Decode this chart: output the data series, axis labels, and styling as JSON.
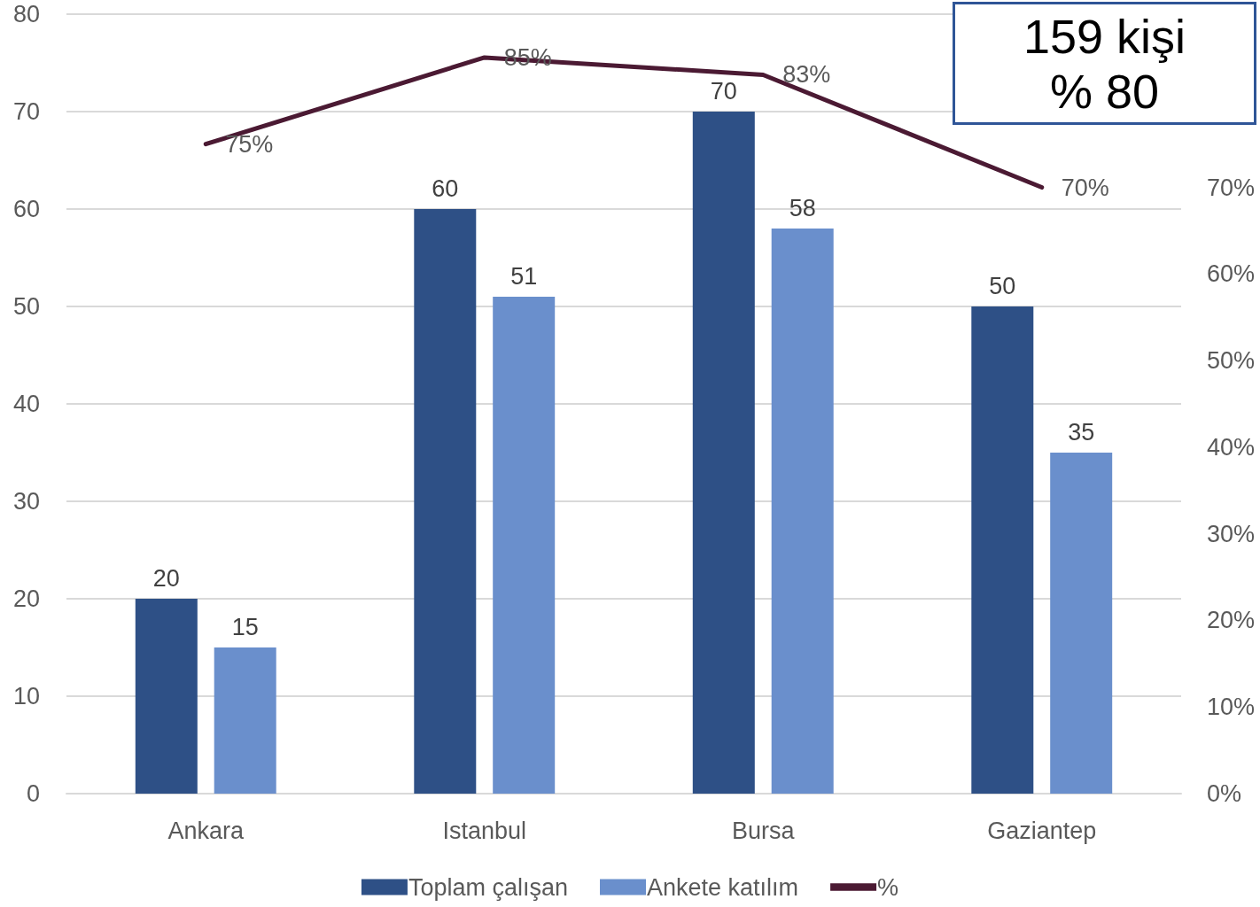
{
  "chart_data": {
    "type": "bar",
    "categories": [
      "Ankara",
      "Istanbul",
      "Bursa",
      "Gaziantep"
    ],
    "series": [
      {
        "name": "Toplam çalışan",
        "color": "#2e5086",
        "values": [
          20,
          60,
          70,
          50
        ],
        "value_labels": [
          "20",
          "60",
          "70",
          "50"
        ]
      },
      {
        "name": "Ankete katılım",
        "color": "#6a8fcc",
        "values": [
          15,
          51,
          58,
          35
        ],
        "value_labels": [
          "15",
          "51",
          "58",
          "35"
        ]
      },
      {
        "name": "%",
        "type": "line",
        "axis": "y2",
        "color": "#4b1a33",
        "values": [
          75,
          85,
          83,
          70
        ],
        "value_labels": [
          "75%",
          "85%",
          "83%",
          "70%"
        ]
      }
    ],
    "ylim": [
      0,
      80
    ],
    "yticks": [
      0,
      10,
      20,
      30,
      40,
      50,
      60,
      70,
      80
    ],
    "y2lim": [
      0,
      90
    ],
    "y2ticks": [
      {
        "value": 0,
        "label": "0%"
      },
      {
        "value": 10,
        "label": "10%"
      },
      {
        "value": 20,
        "label": "20%"
      },
      {
        "value": 30,
        "label": "30%"
      },
      {
        "value": 40,
        "label": "40%"
      },
      {
        "value": 50,
        "label": "50%"
      },
      {
        "value": 60,
        "label": "60%"
      },
      {
        "value": 70,
        "label": "70%"
      }
    ],
    "grid": "y",
    "legend": "bottom",
    "marker": "none",
    "line_style": "solid",
    "annotations": [
      "159 kişi",
      "% 80"
    ]
  }
}
